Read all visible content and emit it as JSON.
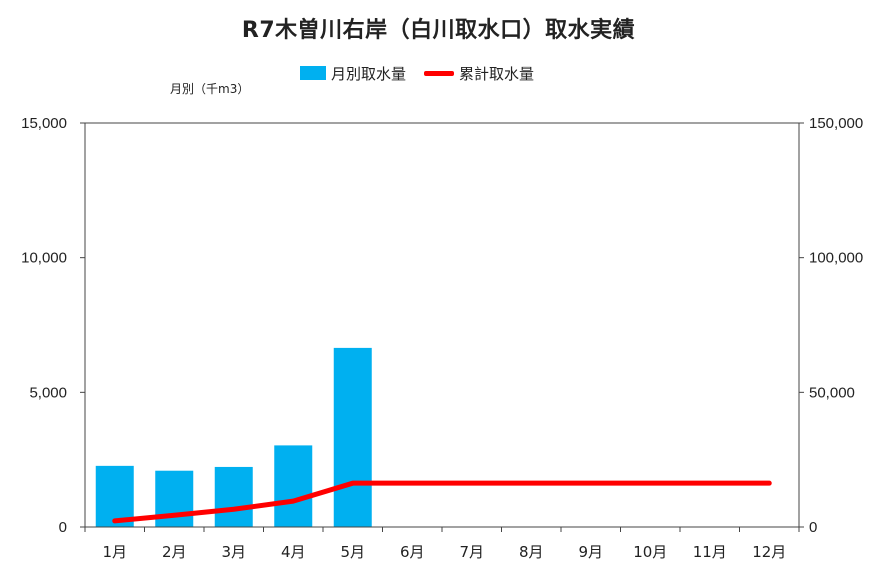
{
  "chart_data": {
    "type": "bar",
    "title": "R7木曽川右岸（白川取水口）取水実績",
    "ylabel_left": "月別（千m3）",
    "categories": [
      "1月",
      "2月",
      "3月",
      "4月",
      "5月",
      "6月",
      "7月",
      "8月",
      "9月",
      "10月",
      "11月",
      "12月"
    ],
    "series": [
      {
        "name": "月別取水量",
        "type": "bar",
        "axis": "left",
        "color": "#00b0f0",
        "values": [
          2270,
          2090,
          2230,
          3030,
          6650,
          null,
          null,
          null,
          null,
          null,
          null,
          null
        ]
      },
      {
        "name": "累計取水量",
        "type": "line",
        "axis": "right",
        "color": "#ff0000",
        "values": [
          2270,
          4360,
          6590,
          9620,
          16270,
          16270,
          16270,
          16270,
          16270,
          16270,
          16270,
          16270
        ]
      }
    ],
    "y_left": {
      "min": 0,
      "max": 15000,
      "ticks": [
        "0",
        "5,000",
        "10,000",
        "15,000"
      ]
    },
    "y_right": {
      "min": 0,
      "max": 150000,
      "ticks": [
        "0",
        "50,000",
        "100,000",
        "150,000"
      ]
    },
    "grid": false,
    "legend_position": "top"
  }
}
